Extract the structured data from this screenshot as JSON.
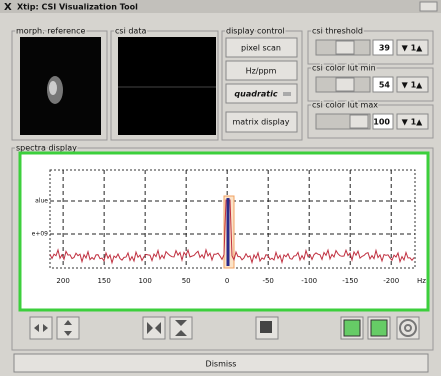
{
  "window": {
    "title": "Xtip: CSI Visualization Tool"
  },
  "panels": {
    "morph": "morph. reference",
    "csi": "csi data",
    "display": "display control",
    "threshold": "csi threshold",
    "lut_min": "csi color lut min",
    "lut_max": "csi color lut max",
    "spectra": "spectra display"
  },
  "buttons": {
    "pixel_scan": "pixel scan",
    "hz_ppm": "Hz/ppm",
    "quadratic": "quadratic",
    "matrix": "matrix display",
    "dismiss": "Dismiss"
  },
  "controls": {
    "threshold_value": "39",
    "lut_min_value": "54",
    "lut_max_value": "100",
    "spinner": "▼ 1▲"
  },
  "plot": {
    "y_labels": [
      "alue",
      "e+09"
    ],
    "x_unit": "Hz",
    "xlim": [
      216,
      -229
    ],
    "xticks": [
      200,
      150,
      100,
      50,
      0,
      -50,
      -100,
      -150,
      -200
    ]
  }
}
